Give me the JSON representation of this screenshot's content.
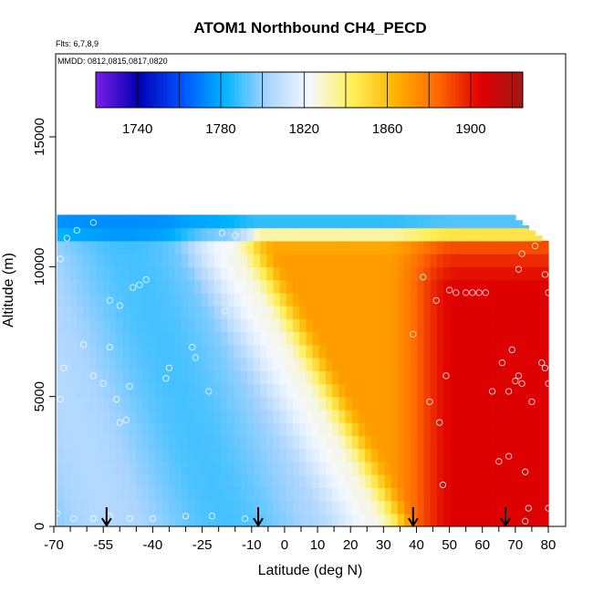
{
  "chart_data": {
    "type": "heatmap",
    "title": "ATOM1 Northbound CH4_PECD",
    "subtitle_flights": "Flts: 6,7,8,9",
    "subtitle_dates": "MMDD: 0812,0815,0817,0820",
    "xlabel": "Latitude (deg N)",
    "ylabel": "Altitude (m)",
    "xlim": [
      -70,
      82
    ],
    "ylim": [
      0,
      17500
    ],
    "x_ticks": [
      -70,
      -55,
      -40,
      -25,
      -10,
      0,
      10,
      20,
      30,
      40,
      50,
      60,
      70,
      80
    ],
    "x_tick_labels": [
      "-70",
      "-55",
      "-40",
      "-25",
      "-10",
      "0",
      "10",
      "20",
      "30",
      "40",
      "50",
      "60",
      "70",
      "80"
    ],
    "x_minor_ticks": [
      -65,
      -60,
      -50,
      -45,
      -35,
      -30,
      -20,
      -15,
      -5,
      5,
      15,
      25,
      35,
      45,
      55,
      65,
      75
    ],
    "y_ticks": [
      0,
      5000,
      10000,
      15000
    ],
    "y_tick_labels": [
      "0",
      "5000",
      "10000",
      "15000"
    ],
    "colorbar": {
      "range": [
        1720,
        1925
      ],
      "ticks": [
        1740,
        1780,
        1820,
        1860,
        1900
      ],
      "tick_labels": [
        "1740",
        "1780",
        "1820",
        "1860",
        "1900"
      ],
      "box_breaks": [
        1740,
        1760,
        1780,
        1800,
        1820,
        1840,
        1860,
        1880,
        1900,
        1920
      ],
      "colors": [
        "#7a1fe6",
        "#0000b4",
        "#0050ff",
        "#00b4ff",
        "#a8d4ff",
        "#f4f8ff",
        "#fff05a",
        "#ffb400",
        "#ff6a00",
        "#e00000",
        "#a01818"
      ]
    },
    "grid": false,
    "profile_markers_lat": [
      -54,
      -8,
      39,
      67
    ],
    "field": {
      "lat_min": -69,
      "lat_max": 80,
      "alt_top_south": 12000,
      "alt_top_north": 11800,
      "boundary_lat_surface": 28,
      "boundary_lat_top": -22,
      "values": {
        "southern_bg_low": 1790,
        "southern_bg_mid": 1805,
        "tropical_band": 1825,
        "northern_mid": 1870,
        "northern_high": 1905,
        "upper_cap": 1770
      }
    },
    "sample_points": [
      [
        -67,
        6100
      ],
      [
        -68,
        4900
      ],
      [
        -61,
        7000
      ],
      [
        -58,
        5800
      ],
      [
        -55,
        5500
      ],
      [
        -53,
        6900
      ],
      [
        -51,
        4900
      ],
      [
        -50,
        4000
      ],
      [
        -48,
        4100
      ],
      [
        -47,
        5400
      ],
      [
        -53,
        8700
      ],
      [
        -50,
        8500
      ],
      [
        -46,
        9200
      ],
      [
        -44,
        9300
      ],
      [
        -42,
        9500
      ],
      [
        -36,
        5700
      ],
      [
        -35,
        6100
      ],
      [
        -28,
        6900
      ],
      [
        -27,
        6500
      ],
      [
        -23,
        5200
      ],
      [
        -18,
        8300
      ],
      [
        -19,
        11300
      ],
      [
        -15,
        11200
      ],
      [
        -10,
        8000
      ],
      [
        -58,
        11700
      ],
      [
        -63,
        11400
      ],
      [
        -66,
        11100
      ],
      [
        -68,
        10300
      ],
      [
        -69,
        500
      ],
      [
        -64,
        300
      ],
      [
        -58,
        300
      ],
      [
        -53,
        400
      ],
      [
        -47,
        300
      ],
      [
        -40,
        300
      ],
      [
        -30,
        400
      ],
      [
        -22,
        400
      ],
      [
        -12,
        300
      ],
      [
        42,
        9600
      ],
      [
        39,
        7400
      ],
      [
        46,
        8700
      ],
      [
        50,
        9100
      ],
      [
        52,
        9000
      ],
      [
        55,
        9000
      ],
      [
        57,
        9000
      ],
      [
        59,
        9000
      ],
      [
        61,
        9000
      ],
      [
        44,
        4800
      ],
      [
        47,
        4000
      ],
      [
        49,
        5800
      ],
      [
        48,
        1600
      ],
      [
        63,
        5200
      ],
      [
        66,
        6300
      ],
      [
        68,
        5200
      ],
      [
        70,
        5600
      ],
      [
        71,
        5800
      ],
      [
        72,
        5500
      ],
      [
        75,
        4800
      ],
      [
        78,
        6300
      ],
      [
        79,
        6100
      ],
      [
        80,
        5500
      ],
      [
        69,
        6800
      ],
      [
        68,
        2700
      ],
      [
        65,
        2500
      ],
      [
        73,
        2100
      ],
      [
        74,
        700
      ],
      [
        76,
        10800
      ],
      [
        75,
        11900
      ],
      [
        72,
        10500
      ],
      [
        71,
        9900
      ],
      [
        80,
        9000
      ],
      [
        79,
        9700
      ],
      [
        80,
        700
      ],
      [
        73,
        200
      ]
    ]
  }
}
